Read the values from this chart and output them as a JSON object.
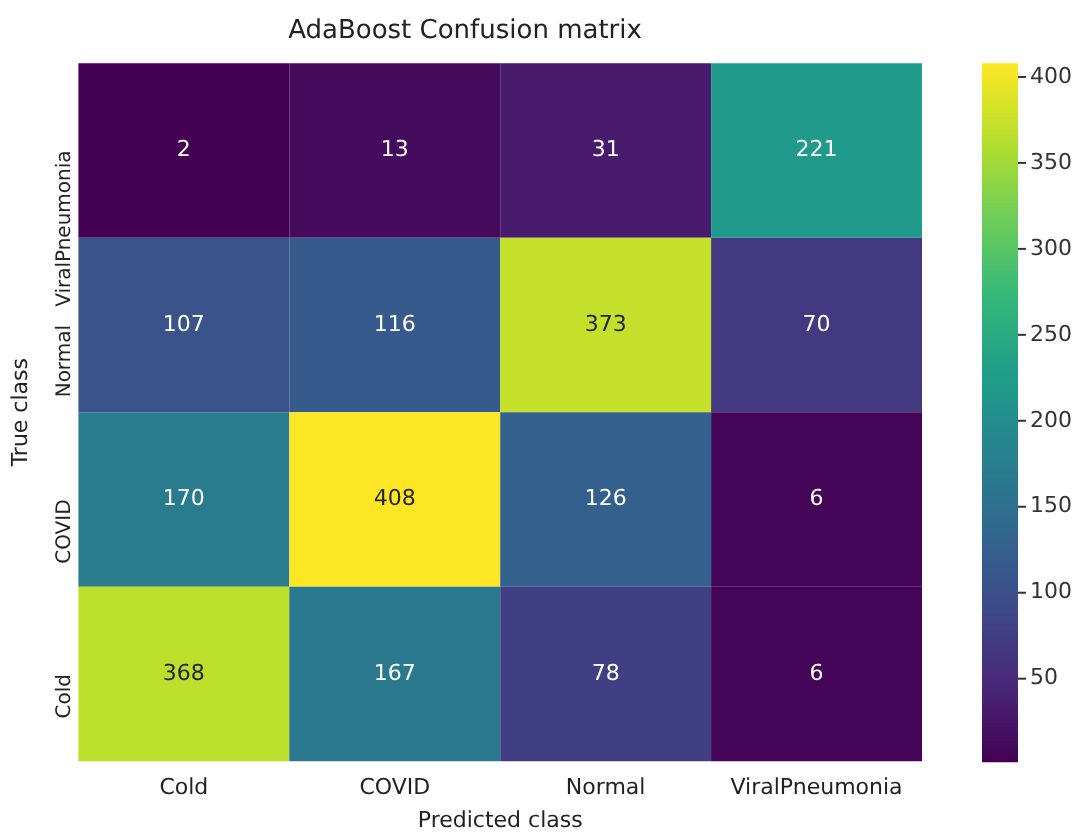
{
  "chart_data": {
    "type": "heatmap",
    "title": "AdaBoost Confusion matrix",
    "xlabel": "Predicted class",
    "ylabel": "True class",
    "categories": [
      "Cold",
      "COVID",
      "Normal",
      "ViralPneumonia"
    ],
    "y_categories": [
      "ViralPneumonia",
      "Normal",
      "COVID",
      "Cold"
    ],
    "cells": [
      [
        2,
        13,
        31,
        221
      ],
      [
        107,
        116,
        373,
        70
      ],
      [
        170,
        408,
        126,
        6
      ],
      [
        368,
        167,
        78,
        6
      ]
    ],
    "data_labels": true,
    "clim": [
      2,
      408
    ],
    "cticks": [
      50,
      100,
      150,
      200,
      250,
      300,
      350,
      400
    ]
  }
}
